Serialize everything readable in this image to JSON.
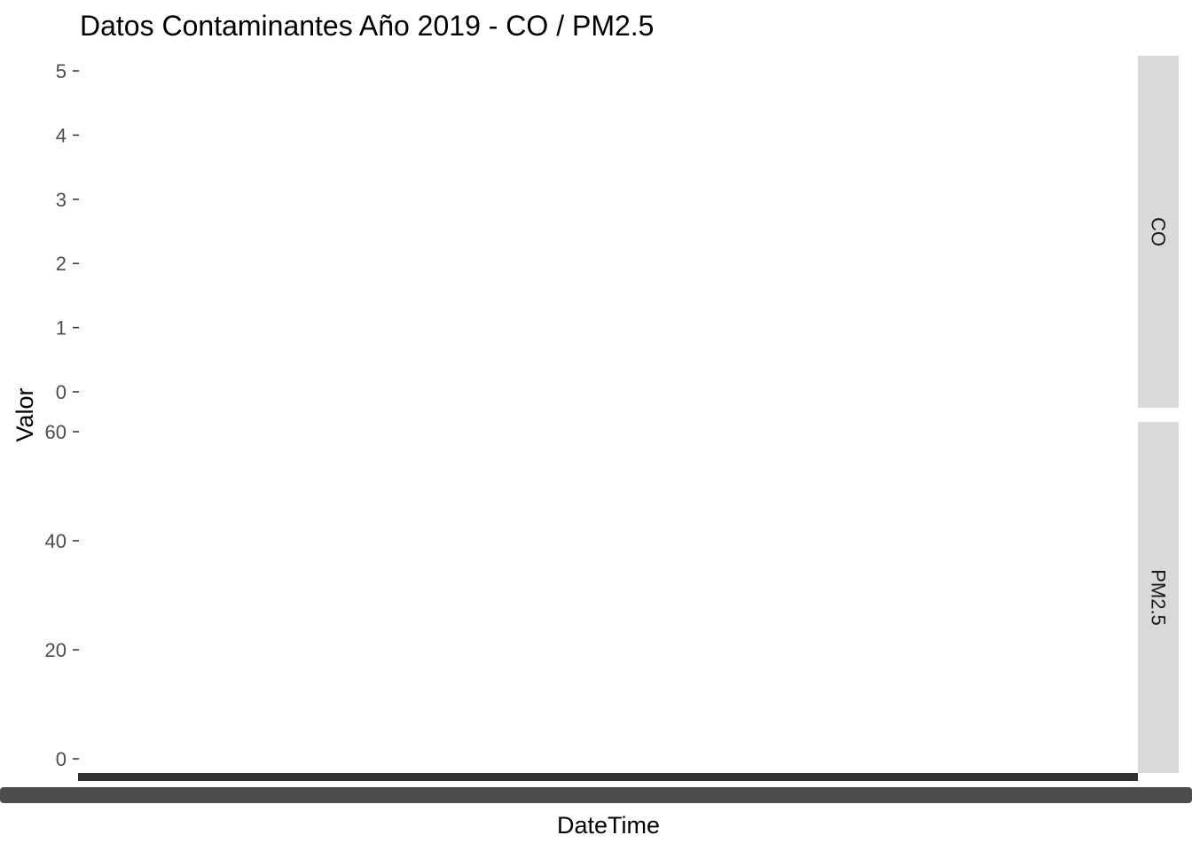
{
  "chart_data": {
    "type": "line",
    "title": "Datos Contaminantes Año 2019 - CO / PM2.5",
    "xlabel": "DateTime",
    "ylabel": "Valor",
    "grid": false,
    "facets": [
      {
        "name": "CO",
        "ylim": [
          0,
          5
        ],
        "yticks": [
          0,
          1,
          2,
          3,
          4,
          5
        ],
        "ytick_labels": [
          "0",
          "1",
          "2",
          "3",
          "4",
          "5"
        ],
        "values": []
      },
      {
        "name": "PM2.5",
        "ylim": [
          0,
          60
        ],
        "yticks": [
          0,
          20,
          40,
          60
        ],
        "ytick_labels": [
          "0",
          "20",
          "40",
          "60"
        ],
        "values": []
      }
    ],
    "colors": {
      "strip_background": "#d9d9d9",
      "strip_text": "#1a1a1a",
      "tick_text": "#4d4d4d",
      "tick_mark": "#333333",
      "axis_bar": "#333333",
      "scrollbar": "#4d4d4d"
    }
  }
}
